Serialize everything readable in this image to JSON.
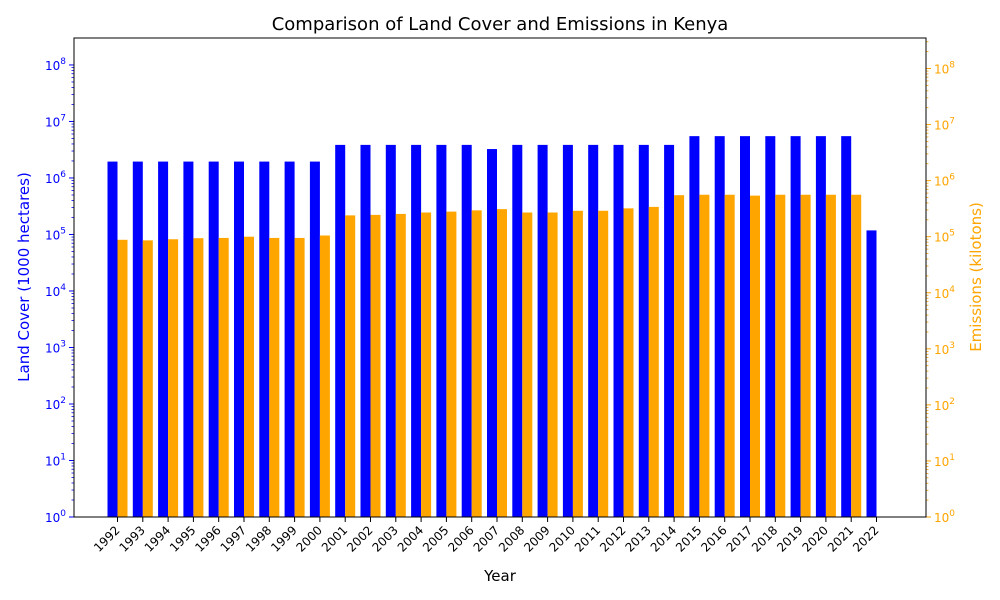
{
  "chart_data": {
    "type": "bar",
    "title": "Comparison of Land Cover and Emissions in Kenya",
    "xlabel": "Year",
    "categories": [
      "1992",
      "1993",
      "1994",
      "1995",
      "1996",
      "1997",
      "1998",
      "1999",
      "2000",
      "2001",
      "2002",
      "2003",
      "2004",
      "2005",
      "2006",
      "2007",
      "2008",
      "2009",
      "2010",
      "2011",
      "2012",
      "2013",
      "2014",
      "2015",
      "2016",
      "2017",
      "2018",
      "2019",
      "2020",
      "2021",
      "2022"
    ],
    "left_axis": {
      "label": "Land Cover (1000 hectares)",
      "color": "#0000ff",
      "scale": "log",
      "ylim": [
        1,
        300000000
      ],
      "tick_base": "10",
      "tick_exponents": [
        "0",
        "1",
        "2",
        "3",
        "4",
        "5",
        "6",
        "7",
        "8"
      ]
    },
    "right_axis": {
      "label": "Emissions (kilotons)",
      "color": "#ffa500",
      "scale": "log",
      "ylim": [
        1,
        350000000
      ],
      "tick_base": "10",
      "tick_exponents": [
        "0",
        "1",
        "2",
        "3",
        "4",
        "5",
        "6",
        "7",
        "8"
      ]
    },
    "series": [
      {
        "axis": "left",
        "color": "#0000ff",
        "values": [
          1950000,
          1950000,
          1950000,
          1950000,
          1950000,
          1950000,
          1950000,
          1950000,
          1950000,
          3850000,
          3850000,
          3850000,
          3850000,
          3850000,
          3850000,
          3250000,
          3850000,
          3850000,
          3850000,
          3850000,
          3850000,
          3850000,
          3850000,
          5500000,
          5500000,
          5500000,
          5500000,
          5500000,
          5500000,
          5500000,
          118000
        ]
      },
      {
        "axis": "right",
        "color": "#ffa500",
        "values": [
          88000,
          86000,
          90000,
          94000,
          95000,
          100000,
          95000,
          95000,
          105000,
          240000,
          245000,
          255000,
          270000,
          280000,
          295000,
          310000,
          270000,
          270000,
          290000,
          290000,
          320000,
          340000,
          550000,
          560000,
          560000,
          540000,
          560000,
          560000,
          560000,
          560000,
          null
        ]
      }
    ]
  }
}
